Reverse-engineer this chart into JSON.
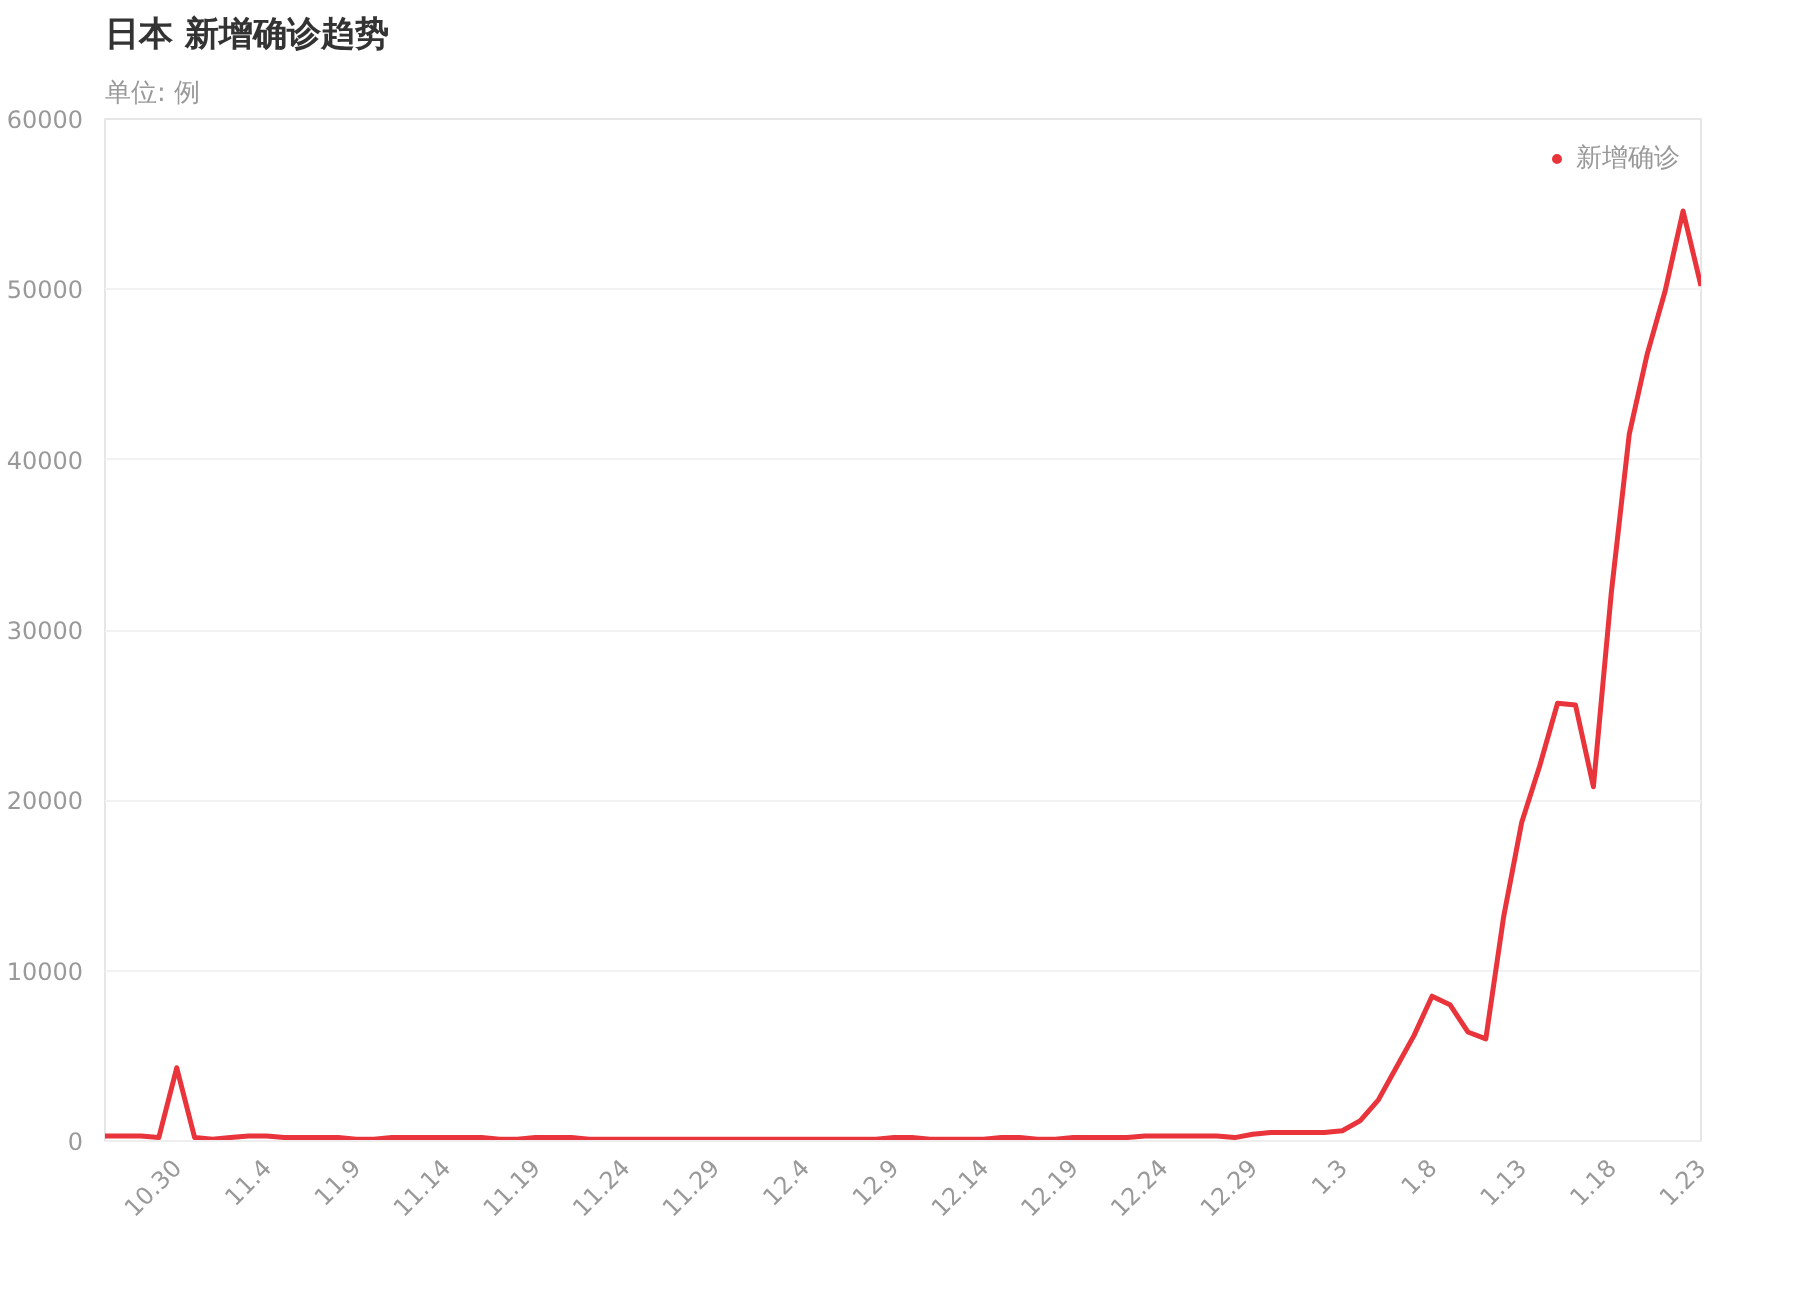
{
  "chart_data": {
    "type": "line",
    "title": "日本 新增确诊趋势",
    "subtitle": "单位: 例",
    "categories": [
      null,
      null,
      null,
      null,
      "10.30",
      null,
      null,
      null,
      null,
      "11.4",
      null,
      null,
      null,
      null,
      "11.9",
      null,
      null,
      null,
      null,
      "11.14",
      null,
      null,
      null,
      null,
      "11.19",
      null,
      null,
      null,
      null,
      "11.24",
      null,
      null,
      null,
      null,
      "11.29",
      null,
      null,
      null,
      null,
      "12.4",
      null,
      null,
      null,
      null,
      "12.9",
      null,
      null,
      null,
      null,
      "12.14",
      null,
      null,
      null,
      null,
      "12.19",
      null,
      null,
      null,
      null,
      "12.24",
      null,
      null,
      null,
      null,
      "12.29",
      null,
      null,
      null,
      null,
      "1.3",
      null,
      null,
      null,
      null,
      "1.8",
      null,
      null,
      null,
      null,
      "1.13",
      null,
      null,
      null,
      null,
      "1.18",
      null,
      null,
      null,
      null,
      "1.23"
    ],
    "series": [
      {
        "name": "新增确诊",
        "color": "#e8343a",
        "values": [
          300,
          300,
          300,
          200,
          4300,
          200,
          100,
          200,
          300,
          300,
          200,
          200,
          200,
          200,
          100,
          100,
          200,
          200,
          200,
          200,
          200,
          200,
          100,
          100,
          200,
          200,
          200,
          100,
          100,
          100,
          100,
          100,
          100,
          100,
          100,
          100,
          100,
          100,
          100,
          100,
          100,
          100,
          100,
          100,
          200,
          200,
          100,
          100,
          100,
          100,
          200,
          200,
          100,
          100,
          200,
          200,
          200,
          200,
          300,
          300,
          300,
          300,
          300,
          200,
          400,
          500,
          500,
          500,
          500,
          600,
          1200,
          2400,
          4300,
          6200,
          8500,
          8000,
          6400,
          6000,
          13200,
          18700,
          22000,
          25700,
          25600,
          20800,
          32200,
          41500,
          46200,
          49900,
          54600,
          50200
        ]
      }
    ],
    "ylim": [
      0,
      60000
    ],
    "yticks": [
      0,
      10000,
      20000,
      30000,
      40000,
      50000,
      60000
    ],
    "grid": "y",
    "legend": "top right",
    "marker": "none",
    "line_style": "solid"
  }
}
